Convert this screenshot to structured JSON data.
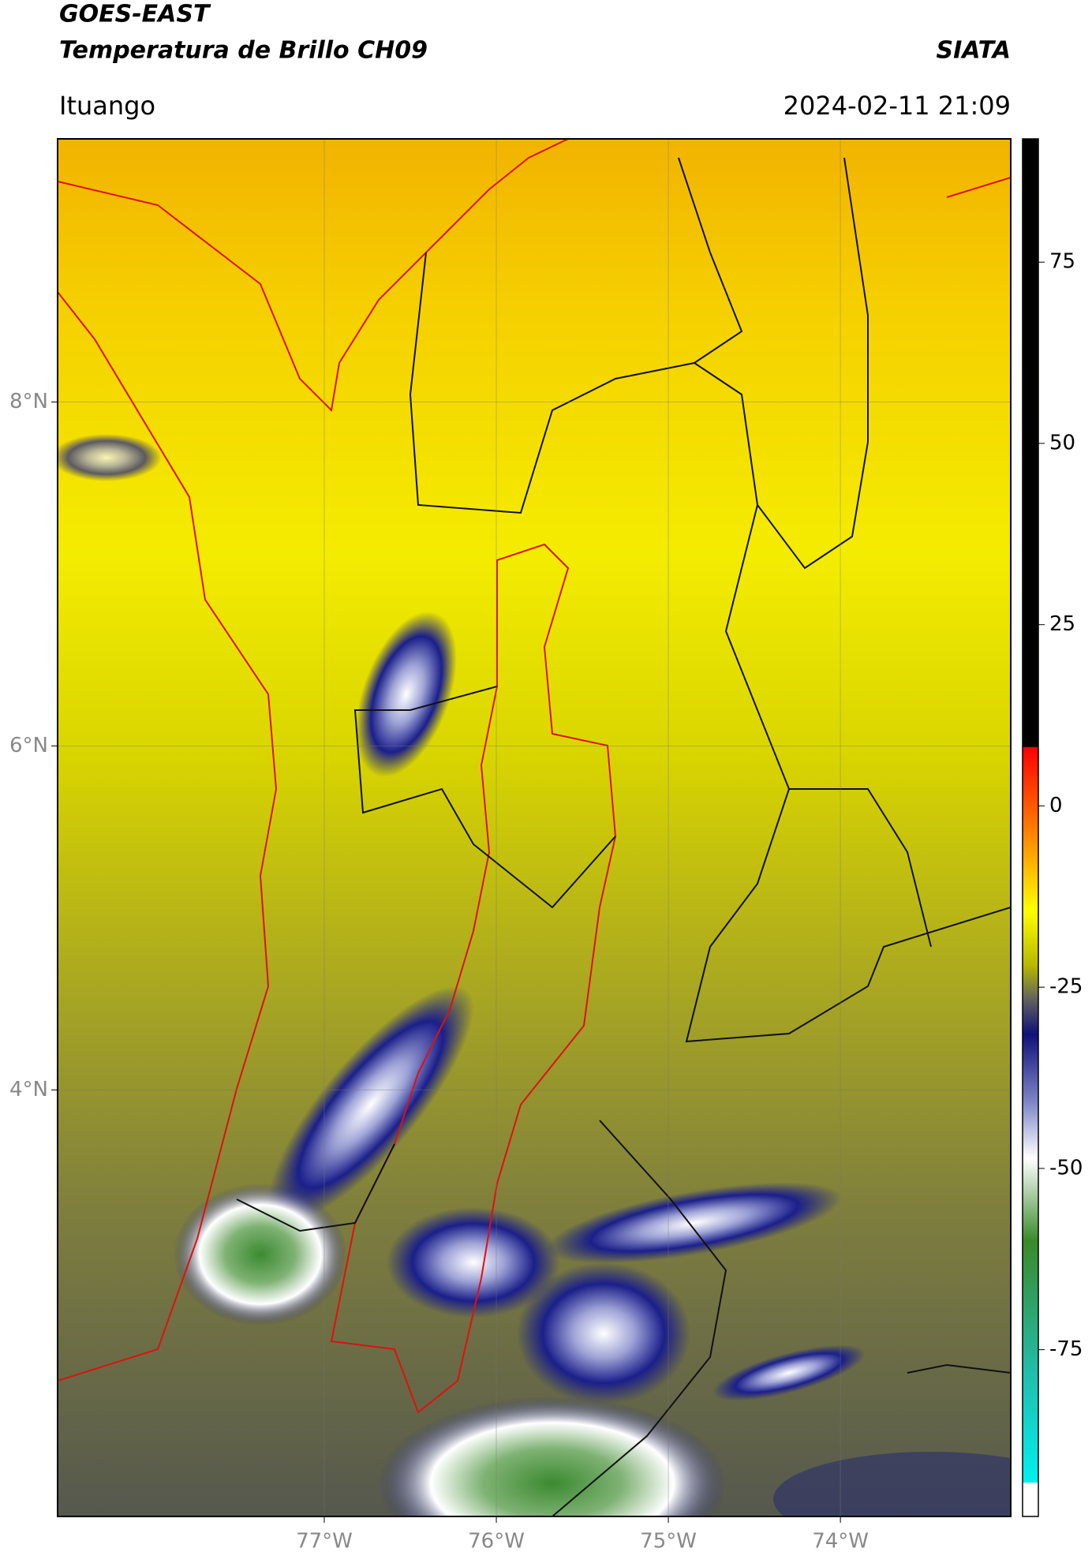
{
  "chart_data": {
    "type": "map",
    "title": "GOES-EAST",
    "subtitle": "Temperatura de Brillo CH09",
    "agency": "SIATA",
    "location": "Ituango",
    "datetime": "2024-02-11 21:09",
    "xlim": [
      -78.55,
      -73.01
    ],
    "ylim": [
      1.52,
      9.53
    ],
    "xticks": [
      {
        "value": -77,
        "label": "77°W"
      },
      {
        "value": -76,
        "label": "76°W"
      },
      {
        "value": -75,
        "label": "75°W"
      },
      {
        "value": -74,
        "label": "74°W"
      }
    ],
    "yticks": [
      {
        "value": 4,
        "label": "4°N"
      },
      {
        "value": 6,
        "label": "6°N"
      },
      {
        "value": 8,
        "label": "8°N"
      }
    ],
    "grid": true,
    "colorbar": {
      "lim": [
        -98,
        92
      ],
      "ticks": [
        -75,
        -50,
        -25,
        0,
        25,
        50,
        75
      ]
    }
  }
}
